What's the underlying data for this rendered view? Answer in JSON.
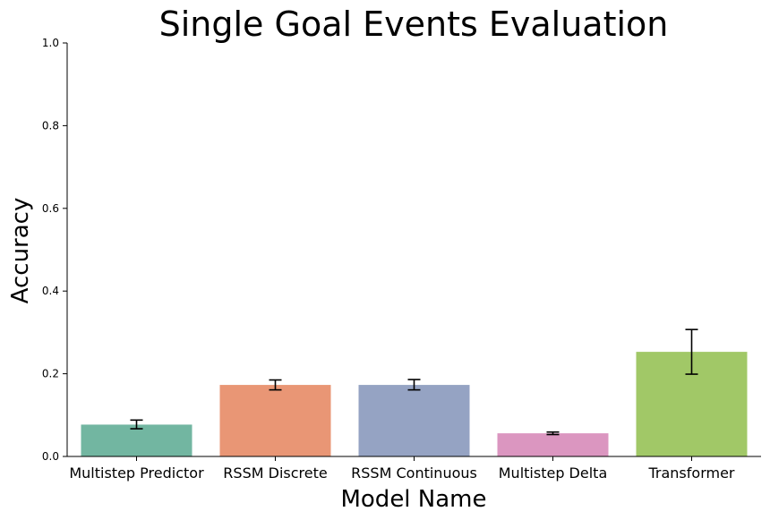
{
  "chart_data": {
    "type": "bar",
    "title": "Single Goal Events Evaluation",
    "xlabel": "Model Name",
    "ylabel": "Accuracy",
    "ylim": [
      0,
      1.0
    ],
    "yticks": [
      "0.0",
      "0.2",
      "0.4",
      "0.6",
      "0.8",
      "1.0"
    ],
    "grid": false,
    "categories": [
      "Multistep Predictor",
      "RSSM Discrete",
      "RSSM Continuous",
      "Multistep Delta",
      "Transformer"
    ],
    "values": [
      0.077,
      0.173,
      0.173,
      0.056,
      0.253
    ],
    "error_low": [
      0.067,
      0.161,
      0.161,
      0.053,
      0.199
    ],
    "error_high": [
      0.088,
      0.185,
      0.186,
      0.059,
      0.307
    ],
    "colors": [
      "#72b6a1",
      "#e99675",
      "#95a3c3",
      "#db96c0",
      "#a1c867"
    ]
  }
}
